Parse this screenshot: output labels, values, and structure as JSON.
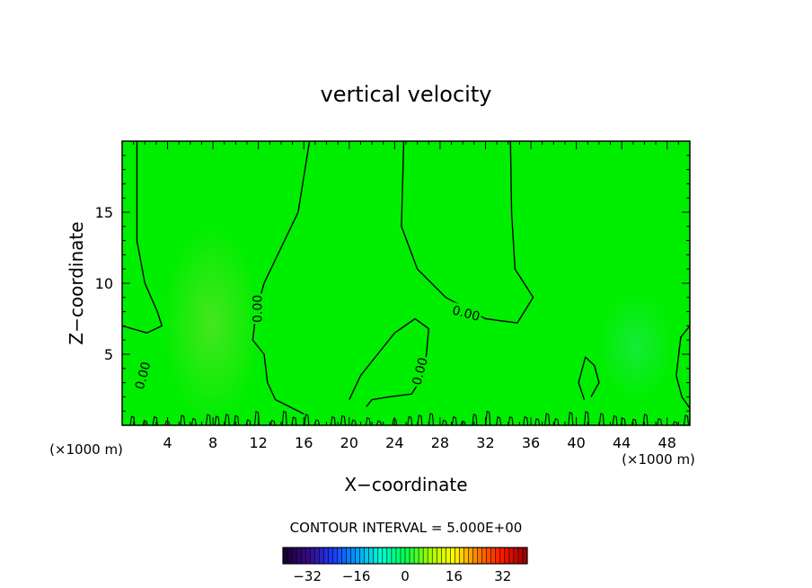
{
  "chart_data": {
    "type": "heatmap",
    "title": "vertical velocity",
    "xlabel": "X−coordinate",
    "ylabel": "Z−coordinate",
    "x_unit_left": "(×1000 m)",
    "x_unit_right": "(×1000 m)",
    "xlim": [
      0,
      50
    ],
    "ylim": [
      0,
      20
    ],
    "x_ticks": [
      4,
      8,
      12,
      16,
      20,
      24,
      28,
      32,
      36,
      40,
      44,
      48
    ],
    "y_ticks": [
      5,
      10,
      15
    ],
    "grid": false,
    "field_color": "#00ee00",
    "contour_color": "#000000",
    "contour_label": "0.00",
    "zero_contours": [
      {
        "name": "left-column",
        "points": [
          [
            1.3,
            20
          ],
          [
            1.3,
            13
          ],
          [
            2.0,
            10
          ],
          [
            3.1,
            8
          ],
          [
            3.5,
            7
          ],
          [
            2.2,
            6.5
          ],
          [
            0,
            7
          ]
        ]
      },
      {
        "name": "center-left",
        "points": [
          [
            16.5,
            20
          ],
          [
            15.5,
            15
          ],
          [
            12.5,
            10
          ],
          [
            11.8,
            8
          ],
          [
            11.5,
            6
          ],
          [
            12.5,
            5
          ],
          [
            12.8,
            3
          ],
          [
            13.5,
            1.8
          ],
          [
            15,
            1.2
          ],
          [
            16,
            0.8
          ]
        ]
      },
      {
        "name": "center-upper",
        "points": [
          [
            24.8,
            20
          ],
          [
            24.6,
            14
          ],
          [
            26,
            11
          ],
          [
            28.5,
            9
          ],
          [
            32,
            7.5
          ],
          [
            34.8,
            7.2
          ],
          [
            36.2,
            9
          ],
          [
            34.6,
            11
          ],
          [
            34.3,
            15
          ],
          [
            34.2,
            20
          ]
        ]
      },
      {
        "name": "center-lower",
        "points": [
          [
            20,
            1.8
          ],
          [
            21,
            3.5
          ],
          [
            22.5,
            5
          ],
          [
            24,
            6.5
          ],
          [
            25.8,
            7.5
          ],
          [
            27,
            6.8
          ],
          [
            26.8,
            5
          ],
          [
            26.5,
            3.5
          ],
          [
            25.5,
            2.2
          ],
          [
            23.5,
            2
          ],
          [
            22,
            1.8
          ],
          [
            21.5,
            1.3
          ]
        ]
      },
      {
        "name": "right-blob",
        "points": [
          [
            40.7,
            1.8
          ],
          [
            40.2,
            3
          ],
          [
            40.8,
            4.8
          ],
          [
            41.6,
            4.2
          ],
          [
            42,
            3
          ],
          [
            41.3,
            2
          ]
        ]
      },
      {
        "name": "right-edge",
        "points": [
          [
            50,
            7
          ],
          [
            49.2,
            6.2
          ],
          [
            48.8,
            3.5
          ],
          [
            49.3,
            2
          ],
          [
            50,
            1.2
          ]
        ]
      }
    ],
    "contour_label_positions": [
      {
        "x": 1.8,
        "y": 3.5,
        "angle": -75
      },
      {
        "x": 11.9,
        "y": 8.2,
        "angle": -90
      },
      {
        "x": 30.3,
        "y": 7.9,
        "angle": 15
      },
      {
        "x": 26.2,
        "y": 3.8,
        "angle": -75
      }
    ],
    "colorbar": {
      "label": "CONTOUR INTERVAL = 5.000E+00",
      "min": -40,
      "max": 40,
      "ticks": [
        -32,
        -16,
        0,
        16,
        32
      ],
      "tick_labels": [
        "−32",
        "−16",
        "0",
        "16",
        "32"
      ],
      "colors": [
        "#1a0033",
        "#3a0a8c",
        "#1a3aff",
        "#00a0ff",
        "#00ffd0",
        "#00ff50",
        "#a0ff00",
        "#ffff00",
        "#ff8000",
        "#ff1a00",
        "#a00000"
      ]
    }
  }
}
